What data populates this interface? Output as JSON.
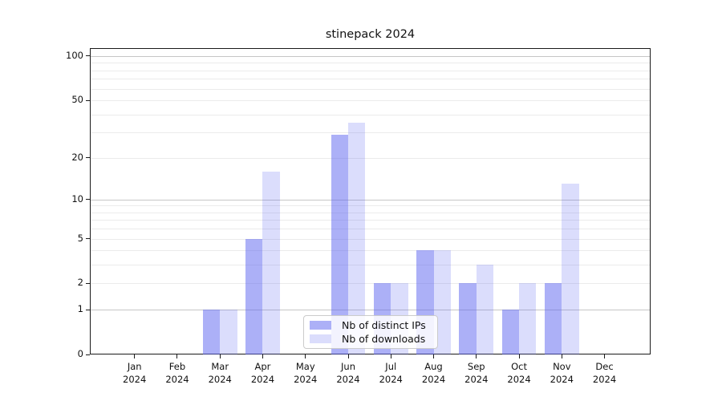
{
  "chart_data": {
    "type": "bar",
    "title": "stinepack 2024",
    "categories": [
      "Jan",
      "Feb",
      "Mar",
      "Apr",
      "May",
      "Jun",
      "Jul",
      "Aug",
      "Sep",
      "Oct",
      "Nov",
      "Dec"
    ],
    "category_year_label": "2024",
    "series": [
      {
        "name": "Nb of distinct IPs",
        "color": "#5a62f0",
        "alpha": 0.5,
        "values": [
          0,
          0,
          1,
          5,
          0,
          29,
          2,
          4,
          2,
          1,
          2,
          0
        ]
      },
      {
        "name": "Nb of downloads",
        "color": "#5a62f0",
        "alpha": 0.22,
        "values": [
          0,
          0,
          1,
          16,
          0,
          35,
          2,
          4,
          3,
          2,
          13,
          0
        ]
      }
    ],
    "yscale": "log10(1+v)",
    "y_ticks": [
      0,
      1,
      2,
      5,
      10,
      20,
      50,
      100
    ],
    "ylim": [
      0,
      110
    ],
    "grid": true,
    "legend_position": "inside-bottom-center",
    "background_color": "#ffffff",
    "grid_minor_color": "#ebebeb",
    "grid_major_color": "#c6c6c6"
  }
}
